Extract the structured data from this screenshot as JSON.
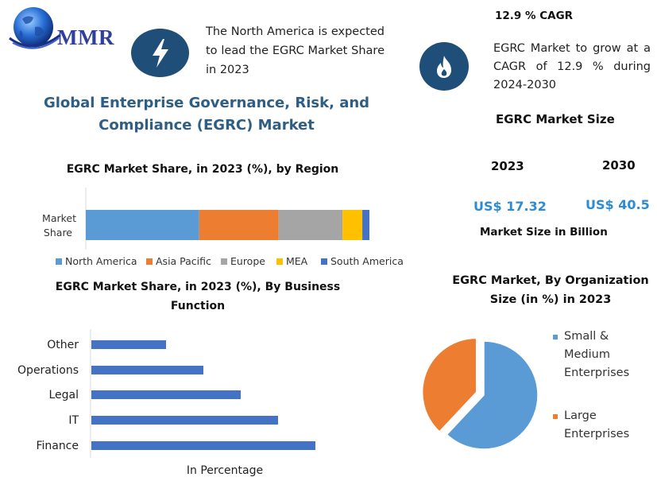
{
  "logo": {
    "text": "MMR"
  },
  "lead": {
    "text": "The North America is expected to lead the EGRC Market Share in 2023"
  },
  "title": {
    "line1": "Global Enterprise Governance, Risk, and",
    "line2": "Compliance (EGRC) Market"
  },
  "cagr": {
    "title": "12.9 % CAGR",
    "text": "EGRC Market to grow at a CAGR of 12.9 % during 2024-2030"
  },
  "market_size": {
    "title": "EGRC Market Size",
    "year1": "2023",
    "year2": "2030",
    "value1": "US$ 17.32",
    "value2": "US$ 40.5",
    "unit": "Market Size in Billion"
  },
  "icons": {
    "lead": "lightning-bolt-icon",
    "cagr": "flame-icon",
    "logo": "globe-icon"
  },
  "colors": {
    "north_america": "#5b9bd5",
    "asia_pacific": "#ed7d31",
    "europe": "#a5a5a5",
    "mea": "#ffc000",
    "south_america": "#4472c4",
    "business_bars": "#4472c4",
    "icon_bg": "#1f4e79",
    "title_blue": "#2e5e86",
    "money_blue": "#2e8bd3"
  },
  "chart_data": [
    {
      "type": "bar",
      "orientation": "horizontal-stacked",
      "title": "EGRC Market Share, in 2023 (%), by Region",
      "categories": [
        "Market Share"
      ],
      "category_lines": [
        "Market",
        "Share"
      ],
      "series": [
        {
          "name": "North America",
          "values": [
            40
          ]
        },
        {
          "name": "Asia Pacific",
          "values": [
            28
          ]
        },
        {
          "name": "Europe",
          "values": [
            22.5
          ]
        },
        {
          "name": "MEA",
          "values": [
            7
          ]
        },
        {
          "name": "South America",
          "values": [
            2.5
          ]
        }
      ],
      "xlim": [
        0,
        100
      ],
      "legend": "bottom"
    },
    {
      "type": "bar",
      "orientation": "horizontal",
      "title": "EGRC Market Share, in 2023 (%), By Business Function",
      "title_lines": [
        "EGRC Market Share, in 2023 (%), By Business",
        "Function"
      ],
      "categories": [
        "Other",
        "Operations",
        "Legal",
        "IT",
        "Finance"
      ],
      "values": [
        1,
        1.5,
        2,
        2.5,
        3
      ],
      "xlabel": "In Percentage",
      "xlim": [
        0,
        4
      ]
    },
    {
      "type": "pie",
      "title": "EGRC Market, By Organization Size (in %) in 2023",
      "title_lines": [
        "EGRC Market, By Organization",
        "Size (in %) in 2023"
      ],
      "labels": [
        "Small & Medium Enterprises",
        "Large Enterprises"
      ],
      "legend_lines": [
        [
          "Small &",
          "Medium",
          "Enterprises"
        ],
        [
          "Large",
          "Enterprises"
        ]
      ],
      "values": [
        62,
        38
      ],
      "legend": "right"
    }
  ]
}
